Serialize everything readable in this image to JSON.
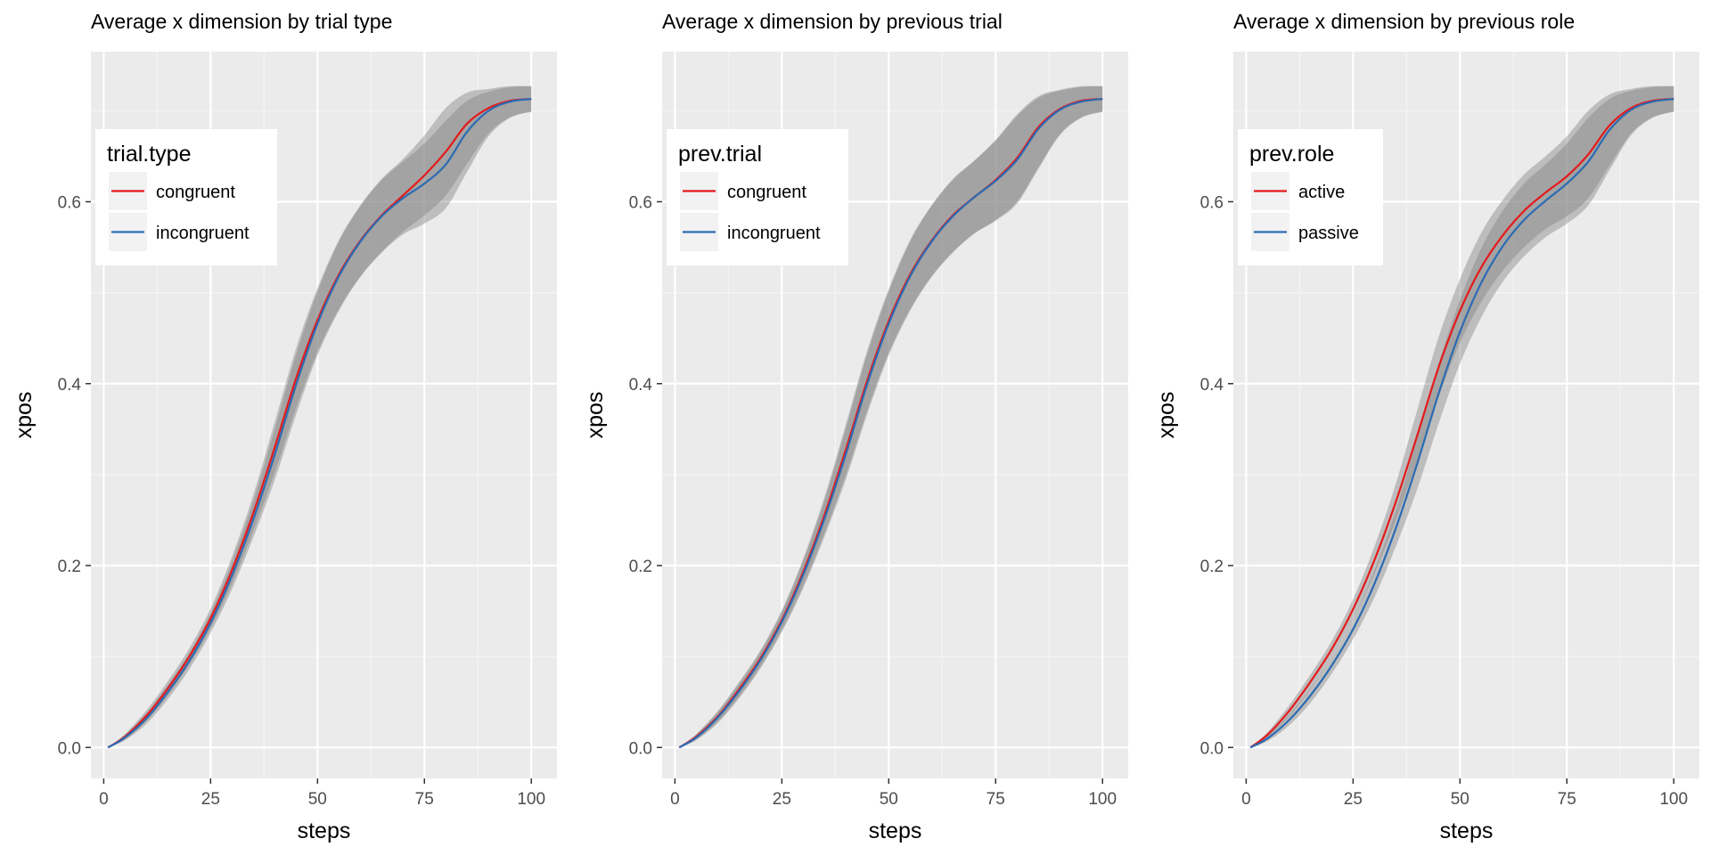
{
  "chart_data": [
    {
      "type": "line",
      "title": "Average x dimension by trial type",
      "xlabel": "steps",
      "ylabel": "xpos",
      "xlim": [
        -3,
        106
      ],
      "ylim": [
        -0.034,
        0.765
      ],
      "xticks": [
        0,
        25,
        50,
        75,
        100
      ],
      "xtick_labels": [
        "0",
        "25",
        "50",
        "75",
        "100"
      ],
      "yticks": [
        0.0,
        0.2,
        0.4,
        0.6
      ],
      "ytick_labels": [
        "0.0",
        "0.2",
        "0.4",
        "0.6"
      ],
      "grid": true,
      "legend": {
        "title": "trial.type",
        "position": "top-left",
        "entries": [
          "congruent",
          "incongruent"
        ]
      },
      "x": [
        1,
        5,
        10,
        15,
        20,
        25,
        30,
        35,
        40,
        45,
        50,
        55,
        60,
        65,
        70,
        75,
        80,
        85,
        90,
        95,
        100
      ],
      "series": [
        {
          "name": "congruent",
          "color": "#e41a1c",
          "values": [
            0.0,
            0.012,
            0.035,
            0.065,
            0.1,
            0.142,
            0.195,
            0.258,
            0.33,
            0.406,
            0.47,
            0.52,
            0.557,
            0.585,
            0.607,
            0.629,
            0.655,
            0.686,
            0.703,
            0.711,
            0.713
          ],
          "band_lower": [
            0.0,
            0.009,
            0.029,
            0.057,
            0.091,
            0.131,
            0.18,
            0.238,
            0.302,
            0.373,
            0.435,
            0.482,
            0.518,
            0.545,
            0.567,
            0.585,
            0.607,
            0.642,
            0.675,
            0.693,
            0.699
          ],
          "band_upper": [
            0.0,
            0.015,
            0.041,
            0.073,
            0.109,
            0.153,
            0.21,
            0.278,
            0.358,
            0.439,
            0.505,
            0.558,
            0.596,
            0.625,
            0.647,
            0.673,
            0.703,
            0.72,
            0.724,
            0.727,
            0.727
          ]
        },
        {
          "name": "incongruent",
          "color": "#2c6bb3",
          "values": [
            0.0,
            0.011,
            0.032,
            0.061,
            0.095,
            0.137,
            0.189,
            0.251,
            0.322,
            0.399,
            0.466,
            0.518,
            0.556,
            0.584,
            0.604,
            0.62,
            0.641,
            0.677,
            0.7,
            0.71,
            0.713
          ],
          "band_lower": [
            0.0,
            0.008,
            0.026,
            0.053,
            0.086,
            0.126,
            0.174,
            0.231,
            0.294,
            0.366,
            0.431,
            0.48,
            0.517,
            0.544,
            0.564,
            0.576,
            0.593,
            0.633,
            0.672,
            0.692,
            0.699
          ],
          "band_upper": [
            0.0,
            0.014,
            0.038,
            0.069,
            0.104,
            0.148,
            0.204,
            0.271,
            0.35,
            0.432,
            0.501,
            0.556,
            0.595,
            0.624,
            0.644,
            0.664,
            0.689,
            0.711,
            0.721,
            0.726,
            0.727
          ]
        }
      ]
    },
    {
      "type": "line",
      "title": "Average x dimension by previous trial",
      "xlabel": "steps",
      "ylabel": "xpos",
      "xlim": [
        -3,
        106
      ],
      "ylim": [
        -0.034,
        0.765
      ],
      "xticks": [
        0,
        25,
        50,
        75,
        100
      ],
      "xtick_labels": [
        "0",
        "25",
        "50",
        "75",
        "100"
      ],
      "yticks": [
        0.0,
        0.2,
        0.4,
        0.6
      ],
      "ytick_labels": [
        "0.0",
        "0.2",
        "0.4",
        "0.6"
      ],
      "grid": true,
      "legend": {
        "title": "prev.trial",
        "position": "top-left",
        "entries": [
          "congruent",
          "incongruent"
        ]
      },
      "x": [
        1,
        5,
        10,
        15,
        20,
        25,
        30,
        35,
        40,
        45,
        50,
        55,
        60,
        65,
        70,
        75,
        80,
        85,
        90,
        95,
        100
      ],
      "series": [
        {
          "name": "congruent",
          "color": "#e41a1c",
          "values": [
            0.0,
            0.012,
            0.034,
            0.064,
            0.098,
            0.14,
            0.193,
            0.256,
            0.328,
            0.404,
            0.469,
            0.52,
            0.557,
            0.585,
            0.605,
            0.624,
            0.648,
            0.682,
            0.702,
            0.711,
            0.713
          ],
          "band_lower": [
            0.0,
            0.009,
            0.028,
            0.056,
            0.089,
            0.129,
            0.178,
            0.236,
            0.3,
            0.371,
            0.434,
            0.482,
            0.518,
            0.545,
            0.565,
            0.58,
            0.6,
            0.638,
            0.674,
            0.693,
            0.699
          ],
          "band_upper": [
            0.0,
            0.015,
            0.04,
            0.072,
            0.107,
            0.151,
            0.208,
            0.276,
            0.356,
            0.437,
            0.504,
            0.558,
            0.596,
            0.625,
            0.645,
            0.668,
            0.696,
            0.716,
            0.723,
            0.727,
            0.727
          ]
        },
        {
          "name": "incongruent",
          "color": "#2c6bb3",
          "values": [
            0.0,
            0.011,
            0.033,
            0.062,
            0.096,
            0.138,
            0.19,
            0.252,
            0.323,
            0.4,
            0.466,
            0.518,
            0.556,
            0.584,
            0.605,
            0.623,
            0.646,
            0.68,
            0.701,
            0.71,
            0.713
          ],
          "band_lower": [
            0.0,
            0.008,
            0.027,
            0.054,
            0.087,
            0.127,
            0.175,
            0.232,
            0.295,
            0.367,
            0.431,
            0.48,
            0.517,
            0.544,
            0.565,
            0.579,
            0.598,
            0.636,
            0.673,
            0.692,
            0.699
          ],
          "band_upper": [
            0.0,
            0.014,
            0.039,
            0.07,
            0.105,
            0.149,
            0.205,
            0.272,
            0.351,
            0.433,
            0.501,
            0.556,
            0.595,
            0.624,
            0.645,
            0.667,
            0.694,
            0.714,
            0.722,
            0.726,
            0.727
          ]
        }
      ]
    },
    {
      "type": "line",
      "title": "Average x dimension by previous role",
      "xlabel": "steps",
      "ylabel": "xpos",
      "xlim": [
        -3,
        106
      ],
      "ylim": [
        -0.034,
        0.765
      ],
      "xticks": [
        0,
        25,
        50,
        75,
        100
      ],
      "xtick_labels": [
        "0",
        "25",
        "50",
        "75",
        "100"
      ],
      "yticks": [
        0.0,
        0.2,
        0.4,
        0.6
      ],
      "ytick_labels": [
        "0.0",
        "0.2",
        "0.4",
        "0.6"
      ],
      "grid": true,
      "legend": {
        "title": "prev.role",
        "position": "top-left",
        "entries": [
          "active",
          "passive"
        ]
      },
      "x": [
        1,
        5,
        10,
        15,
        20,
        25,
        30,
        35,
        40,
        45,
        50,
        55,
        60,
        65,
        70,
        75,
        80,
        85,
        90,
        95,
        100
      ],
      "series": [
        {
          "name": "active",
          "color": "#e41a1c",
          "values": [
            0.0,
            0.014,
            0.04,
            0.072,
            0.108,
            0.152,
            0.206,
            0.27,
            0.343,
            0.418,
            0.48,
            0.528,
            0.563,
            0.59,
            0.61,
            0.628,
            0.652,
            0.684,
            0.703,
            0.711,
            0.713
          ],
          "band_lower": [
            0.0,
            0.011,
            0.034,
            0.064,
            0.099,
            0.141,
            0.191,
            0.25,
            0.315,
            0.385,
            0.445,
            0.49,
            0.524,
            0.55,
            0.57,
            0.584,
            0.604,
            0.64,
            0.675,
            0.693,
            0.699
          ],
          "band_upper": [
            0.0,
            0.017,
            0.046,
            0.08,
            0.117,
            0.163,
            0.221,
            0.29,
            0.371,
            0.451,
            0.515,
            0.566,
            0.602,
            0.63,
            0.65,
            0.672,
            0.7,
            0.718,
            0.724,
            0.727,
            0.727
          ]
        },
        {
          "name": "passive",
          "color": "#2c6bb3",
          "values": [
            0.0,
            0.01,
            0.03,
            0.057,
            0.09,
            0.13,
            0.18,
            0.241,
            0.312,
            0.389,
            0.457,
            0.511,
            0.551,
            0.58,
            0.601,
            0.62,
            0.644,
            0.679,
            0.701,
            0.71,
            0.713
          ],
          "band_lower": [
            0.0,
            0.007,
            0.024,
            0.049,
            0.081,
            0.119,
            0.165,
            0.221,
            0.284,
            0.356,
            0.422,
            0.473,
            0.512,
            0.54,
            0.561,
            0.576,
            0.596,
            0.635,
            0.673,
            0.692,
            0.699
          ],
          "band_upper": [
            0.0,
            0.013,
            0.036,
            0.065,
            0.099,
            0.141,
            0.195,
            0.261,
            0.34,
            0.422,
            0.492,
            0.549,
            0.59,
            0.62,
            0.641,
            0.664,
            0.692,
            0.713,
            0.722,
            0.726,
            0.727
          ]
        }
      ]
    }
  ]
}
